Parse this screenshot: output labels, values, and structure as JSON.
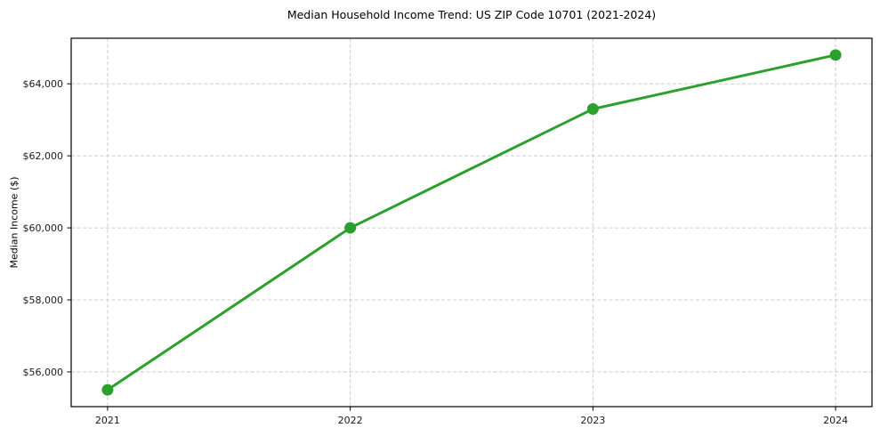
{
  "chart_data": {
    "type": "line",
    "title": "Median Household Income Trend: US ZIP Code 10701 (2021-2024)",
    "xlabel": "",
    "ylabel": "Median Income ($)",
    "x": [
      2021,
      2022,
      2023,
      2024
    ],
    "categories": [
      "2021",
      "2022",
      "2023",
      "2024"
    ],
    "series": [
      {
        "name": "Median Household Income",
        "values": [
          55500,
          60000,
          63300,
          64800
        ]
      }
    ],
    "xlim": [
      2020.85,
      2024.15
    ],
    "ylim": [
      55035,
      65265
    ],
    "xticks": [
      2021,
      2022,
      2023,
      2024
    ],
    "xtick_labels": [
      "2021",
      "2022",
      "2023",
      "2024"
    ],
    "yticks": [
      56000,
      58000,
      60000,
      62000,
      64000
    ],
    "ytick_labels": [
      "$56,000",
      "$58,000",
      "$60,000",
      "$62,000",
      "$64,000"
    ],
    "grid": true,
    "grid_style": "dashed",
    "legend": "none",
    "colors": {
      "line": "#2ca02c",
      "marker": "#2ca02c",
      "grid": "#cccccc",
      "spine": "#000000",
      "tick_text": "#1a1a1a",
      "background": "#ffffff"
    }
  }
}
